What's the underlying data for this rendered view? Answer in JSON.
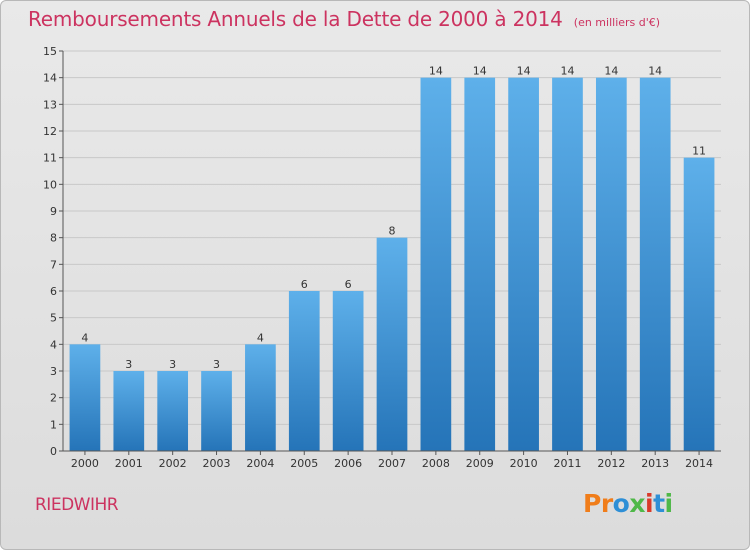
{
  "header": {
    "title": "Remboursements Annuels de la Dette de 2000 à 2014",
    "unit": "(en milliers d'€)"
  },
  "footer": {
    "commune": "RIEDWIHR",
    "logo": "Proxiti",
    "logo_colors": [
      "#f07d1a",
      "#f07d1a",
      "#2e8fd6",
      "#4fb848",
      "#d93a2a",
      "#2e8fd6",
      "#4fb848"
    ]
  },
  "colors": {
    "title": "#cc3360",
    "bar_top": "#5eb0ea",
    "bar_bottom": "#2574b8",
    "grid": "#c8c8c8",
    "axis_text": "#333333"
  },
  "chart_data": {
    "type": "bar",
    "title": "Remboursements Annuels de la Dette de 2000 à 2014",
    "unit": "(en milliers d'€)",
    "categories": [
      "2000",
      "2001",
      "2002",
      "2003",
      "2004",
      "2005",
      "2006",
      "2007",
      "2008",
      "2009",
      "2010",
      "2011",
      "2012",
      "2013",
      "2014"
    ],
    "values": [
      4,
      3,
      3,
      3,
      4,
      6,
      6,
      8,
      14,
      14,
      14,
      14,
      14,
      14,
      11
    ],
    "ylim": [
      0,
      15
    ],
    "yticks": [
      0,
      1,
      2,
      3,
      4,
      5,
      6,
      7,
      8,
      9,
      10,
      11,
      12,
      13,
      14,
      15
    ],
    "grid": true,
    "legend": "none"
  }
}
